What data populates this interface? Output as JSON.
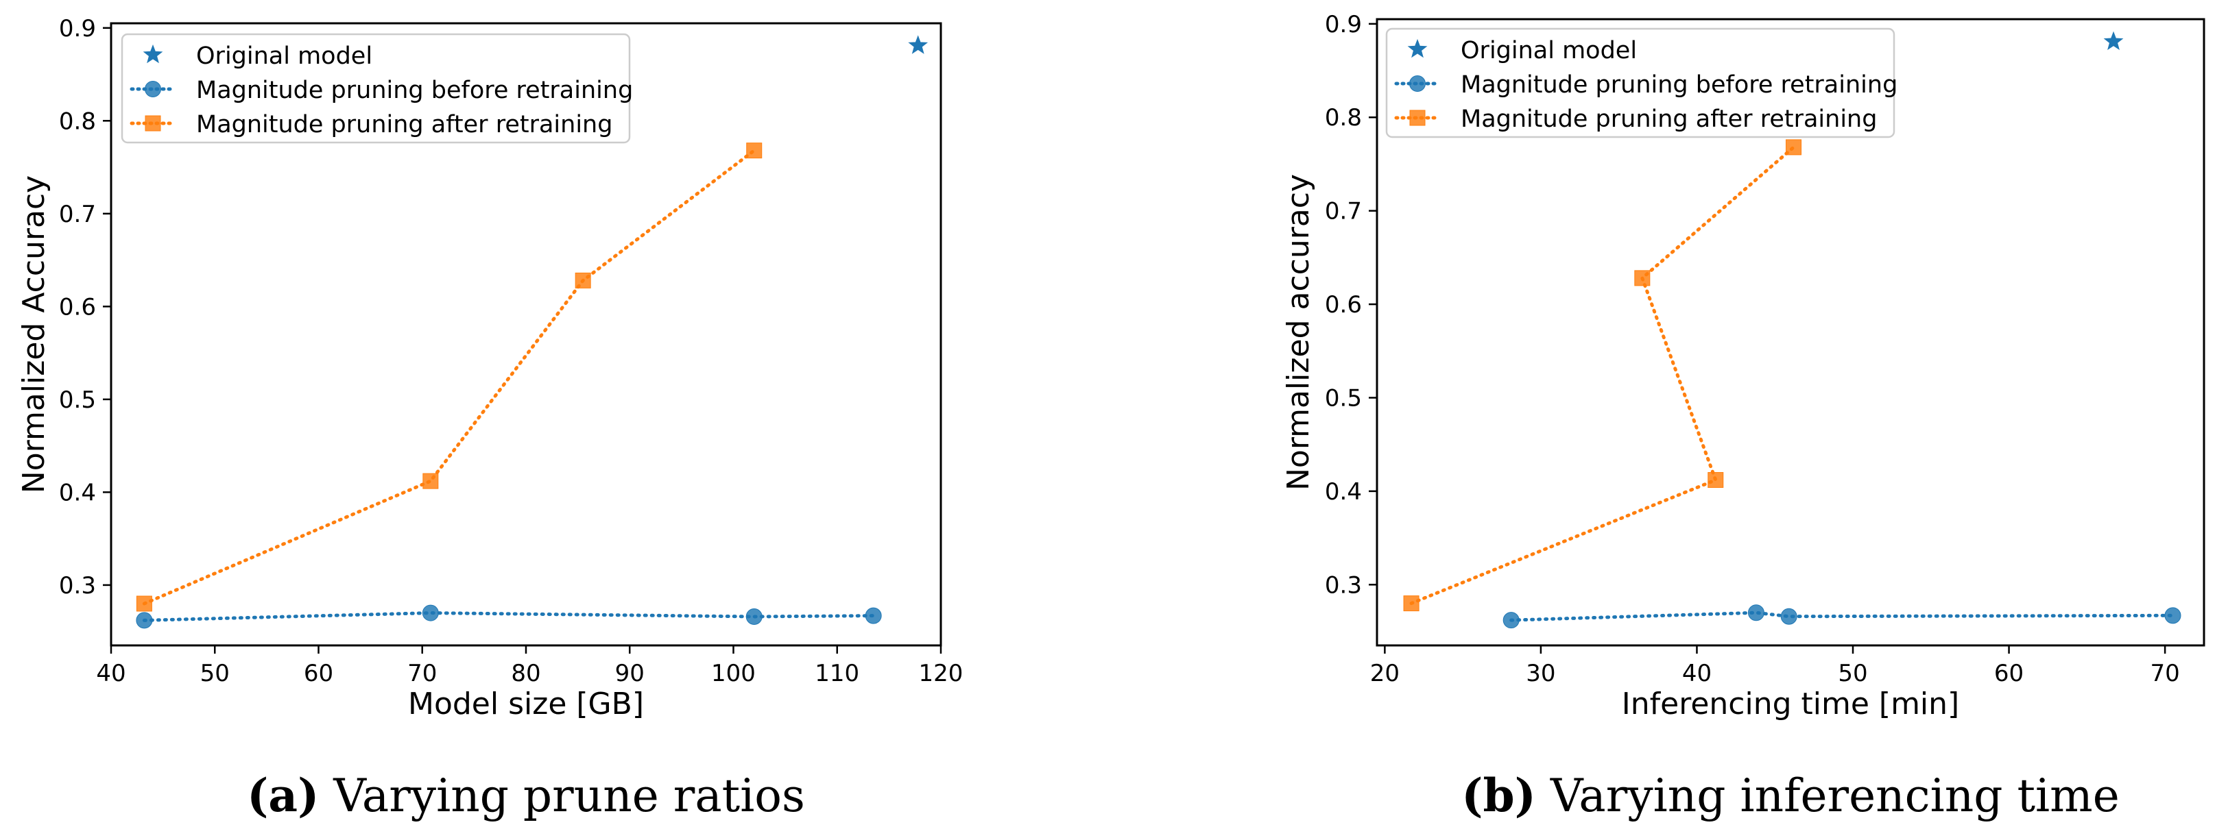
{
  "colors": {
    "blue": "#1f77b4",
    "orange": "#ff7f0e",
    "axis": "#000000",
    "legend_border": "#cccccc"
  },
  "chart_data": [
    {
      "type": "line",
      "id": "a",
      "caption_letter": "(a)",
      "caption_text": " Varying prune ratios",
      "xlabel": "Model size [GB]",
      "ylabel": "Normalized Accuracy",
      "xlim": [
        40,
        120
      ],
      "ylim": [
        0.235,
        0.905
      ],
      "xticks": [
        40,
        50,
        60,
        70,
        80,
        90,
        100,
        110,
        120
      ],
      "yticks": [
        0.3,
        0.4,
        0.5,
        0.6,
        0.7,
        0.8,
        0.9
      ],
      "legend_position": "top-left",
      "series": [
        {
          "name": "Original model",
          "marker": "star",
          "line": "none",
          "color": "#1f77b4",
          "points": [
            [
              117.8,
              0.881
            ]
          ]
        },
        {
          "name": "Magnitude pruning before retraining",
          "marker": "circle",
          "line": "dotted",
          "color": "#1f77b4",
          "points": [
            [
              43.2,
              0.262
            ],
            [
              70.8,
              0.27
            ],
            [
              102.0,
              0.266
            ],
            [
              113.5,
              0.267
            ]
          ]
        },
        {
          "name": "Magnitude pruning after retraining",
          "marker": "square",
          "line": "dotted",
          "color": "#ff7f0e",
          "points": [
            [
              43.2,
              0.28
            ],
            [
              70.8,
              0.412
            ],
            [
              85.5,
              0.628
            ],
            [
              102.0,
              0.768
            ]
          ]
        }
      ]
    },
    {
      "type": "line",
      "id": "b",
      "caption_letter": "(b)",
      "caption_text": " Varying inferencing time",
      "xlabel": "Inferencing time [min]",
      "ylabel": "Normalized accuracy",
      "xlim": [
        19.5,
        72.5
      ],
      "ylim": [
        0.235,
        0.905
      ],
      "xticks": [
        20,
        30,
        40,
        50,
        60,
        70
      ],
      "yticks": [
        0.3,
        0.4,
        0.5,
        0.6,
        0.7,
        0.8,
        0.9
      ],
      "legend_position": "top-left",
      "series": [
        {
          "name": "Original model",
          "marker": "star",
          "line": "none",
          "color": "#1f77b4",
          "points": [
            [
              66.7,
              0.881
            ]
          ]
        },
        {
          "name": "Magnitude pruning before retraining",
          "marker": "circle",
          "line": "dotted",
          "color": "#1f77b4",
          "points": [
            [
              28.1,
              0.262
            ],
            [
              43.8,
              0.27
            ],
            [
              45.9,
              0.266
            ],
            [
              70.5,
              0.267
            ]
          ]
        },
        {
          "name": "Magnitude pruning after retraining",
          "marker": "square",
          "line": "dotted",
          "color": "#ff7f0e",
          "points": [
            [
              21.7,
              0.28
            ],
            [
              41.2,
              0.412
            ],
            [
              36.5,
              0.628
            ],
            [
              46.2,
              0.768
            ]
          ]
        }
      ]
    }
  ]
}
